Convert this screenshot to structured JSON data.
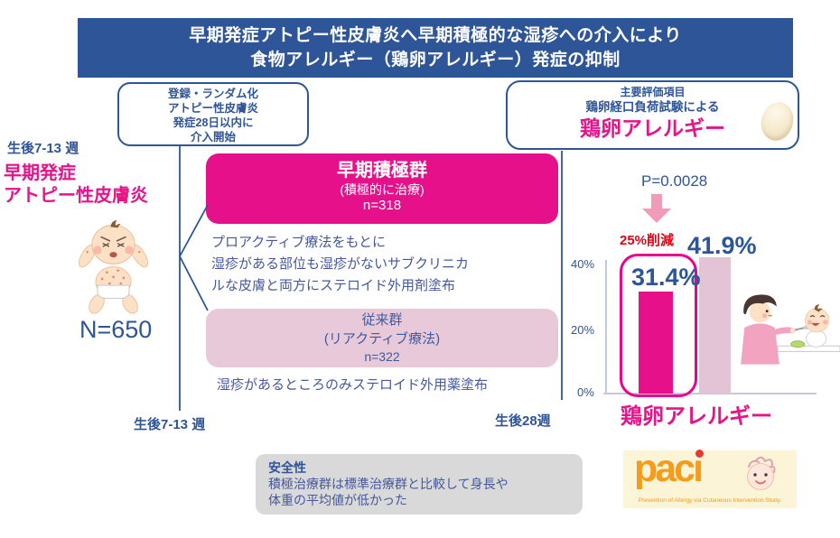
{
  "title": {
    "line1": "早期発症アトピー性皮膚炎へ早期積極的な湿疹への介入により",
    "line2": "食物アレルギー（鶏卵アレルギー）発症の抑制"
  },
  "randomization_box": {
    "line1": "登録・ランダム化",
    "line2": "アトピー性皮膚炎",
    "line3": "発症28日以内に",
    "line4": "介入開始"
  },
  "endpoint_box": {
    "line1": "主要評価項目",
    "line2": "鶏卵経口負荷試験による",
    "line3": "鶏卵アレルギー",
    "egg_icon": "egg-icon"
  },
  "population": {
    "timepoint": "生後7-13 週",
    "condition_line1": "早期発症",
    "condition_line2": "アトピー性皮膚炎",
    "n_total": "N=650",
    "baby_icon": "crying-baby-with-rash-icon"
  },
  "groups": {
    "active": {
      "name": "早期積極群",
      "subtitle": "(積極的に治療)",
      "n": "n=318",
      "description": [
        "プロアクティブ療法をもとに",
        "湿疹がある部位も湿疹がないサブクリニカ",
        "ルな皮膚と両方にステロイド外用剤塗布"
      ]
    },
    "conventional": {
      "name": "従来群",
      "subtitle": "(リアクティブ療法)",
      "n": "n=322",
      "description": "湿疹があるところのみステロイド外用薬塗布"
    }
  },
  "timeline": {
    "start_label": "生後7-13 週",
    "end_label": "生後28週"
  },
  "results": {
    "p_value": "P=0.0028",
    "reduction_label": "25%削減",
    "active_value_label": "31.4%",
    "conventional_value_label": "41.9%",
    "outcome_label": "鶏卵アレルギー",
    "y_ticks": [
      "40%",
      "20%",
      "0%"
    ],
    "arrow_icon": "down-arrow-icon",
    "feeding_icon": "mother-feeding-baby-icon"
  },
  "chart_data": {
    "type": "bar",
    "title": "鶏卵アレルギー",
    "categories": [
      "早期積極群",
      "従来群"
    ],
    "values": [
      31.4,
      41.9
    ],
    "unit": "%",
    "ylim": [
      0,
      44
    ],
    "yticks": [
      0,
      20,
      40
    ],
    "annotations": [
      "P=0.0028",
      "25%削減"
    ],
    "bar_colors": [
      "#e5108a",
      "#e3c4d6"
    ],
    "legend": "none",
    "grid": false
  },
  "safety_box": {
    "title": "安全性",
    "line1": "積極治療群は標準治療群と比較して身長や",
    "line2": "体重の平均値が低かった"
  },
  "logo": {
    "word": "pac",
    "word_i": "ı",
    "subtitle": "Prevention of Allergy via Cutaneous Intervention Study.",
    "baby_face_icon": "baby-face-icon",
    "background": "#fbf4d6",
    "orange": "#f59c1d"
  },
  "colors": {
    "banner_navy": "#2e5597",
    "blue_text": "#44589c",
    "magenta": "#e5108a",
    "magenta_outline": "#ec008c",
    "light_pink": "#e7c9da",
    "red": "#e60012",
    "arrow_pink": "#f29ab9",
    "gray_box": "#d9d9d9"
  }
}
